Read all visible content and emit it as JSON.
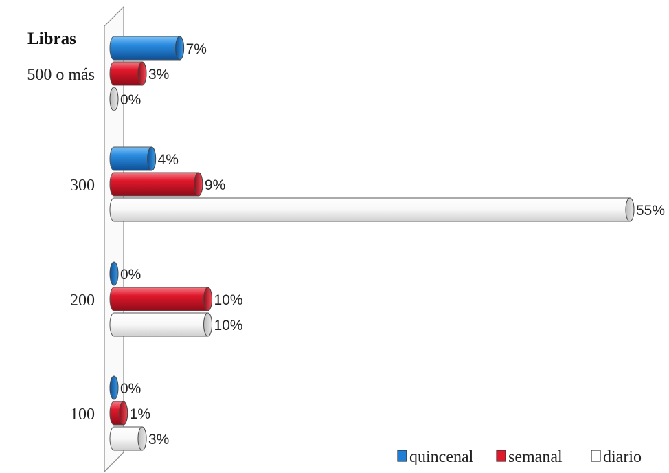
{
  "chart_data": {
    "type": "bar",
    "orientation": "horizontal",
    "style": "3d-cylinder",
    "ylabel": "Libras",
    "categories": [
      "500 o más",
      "300",
      "200",
      "100"
    ],
    "series": [
      {
        "name": "quincenal",
        "values": [
          7,
          4,
          0,
          0
        ],
        "labels": [
          "7%",
          "4%",
          "0%",
          "0%"
        ],
        "color": "#1f7fd6"
      },
      {
        "name": "semanal",
        "values": [
          3,
          9,
          10,
          1
        ],
        "labels": [
          "3%",
          "9%",
          "10%",
          "1%"
        ],
        "color": "#e0182b"
      },
      {
        "name": "diario",
        "values": [
          0,
          55,
          10,
          3
        ],
        "labels": [
          "0%",
          "55%",
          "10%",
          "3%"
        ],
        "color": "#ffffff"
      }
    ],
    "xlim": [
      0,
      55
    ],
    "grid": false,
    "legend": "bottom-right"
  }
}
